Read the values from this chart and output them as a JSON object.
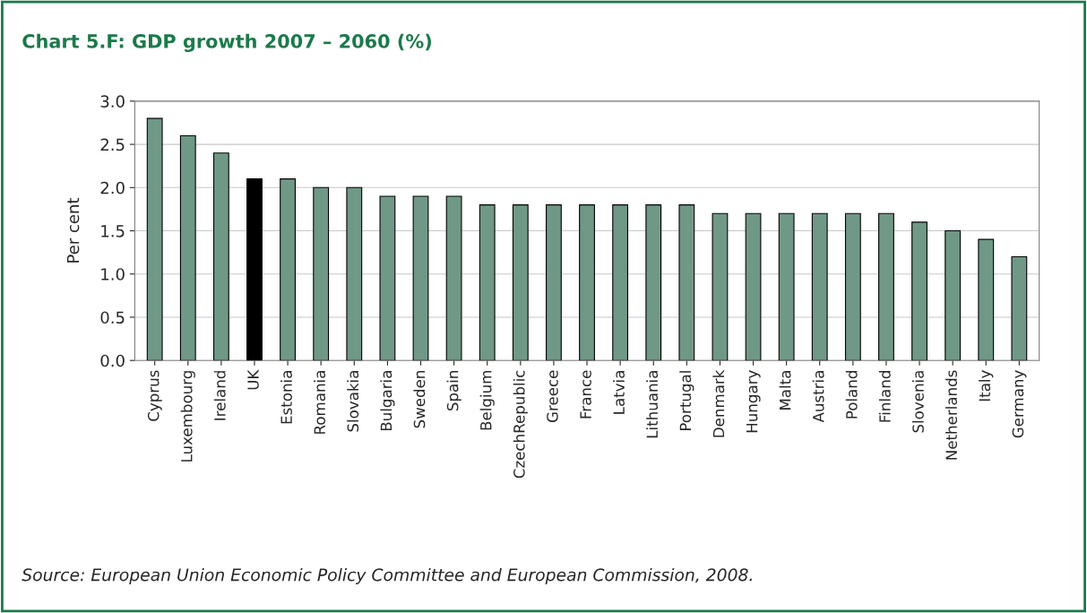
{
  "chart_data": {
    "type": "bar",
    "title": "Chart 5.F: GDP growth 2007 – 2060 (%)",
    "ylabel": "Per cent",
    "categories": [
      "Cyprus",
      "Luxembourg",
      "Ireland",
      "UK",
      "Estonia",
      "Romania",
      "Slovakia",
      "Bulgaria",
      "Sweden",
      "Spain",
      "Belgium",
      "CzechRepublic",
      "Greece",
      "France",
      "Latvia",
      "Lithuania",
      "Portugal",
      "Denmark",
      "Hungary",
      "Malta",
      "Austria",
      "Poland",
      "Finland",
      "Slovenia",
      "Netherlands",
      "Italy",
      "Germany"
    ],
    "values": [
      2.8,
      2.6,
      2.4,
      2.1,
      2.1,
      2.0,
      2.0,
      1.9,
      1.9,
      1.9,
      1.8,
      1.8,
      1.8,
      1.8,
      1.8,
      1.8,
      1.8,
      1.7,
      1.7,
      1.7,
      1.7,
      1.7,
      1.7,
      1.6,
      1.5,
      1.4,
      1.2
    ],
    "colors": [
      "#6a9e86",
      "#6a9e86",
      "#6a9e86",
      "#000000",
      "#6a9e86",
      "#6a9e86",
      "#6a9e86",
      "#6a9e86",
      "#6a9e86",
      "#6a9e86",
      "#6a9e86",
      "#6a9e86",
      "#6a9e86",
      "#6a9e86",
      "#6a9e86",
      "#6a9e86",
      "#6a9e86",
      "#6a9e86",
      "#6a9e86",
      "#6a9e86",
      "#6a9e86",
      "#6a9e86",
      "#6a9e86",
      "#6a9e86",
      "#6a9e86",
      "#6a9e86",
      "#6a9e86"
    ],
    "ylim": [
      0,
      3
    ],
    "yticks": [
      {
        "value": 0,
        "label": "0.0"
      },
      {
        "value": 0.5,
        "label": "0.5"
      },
      {
        "value": 1,
        "label": "1.0"
      },
      {
        "value": 1.5,
        "label": "1.5"
      },
      {
        "value": 2,
        "label": "2.0"
      },
      {
        "value": 2.5,
        "label": "2.5"
      },
      {
        "value": 3,
        "label": "3.0"
      }
    ],
    "grid": "y",
    "annotations": [
      "Source: European Union Economic Policy Committee and European Commission, 2008."
    ]
  }
}
